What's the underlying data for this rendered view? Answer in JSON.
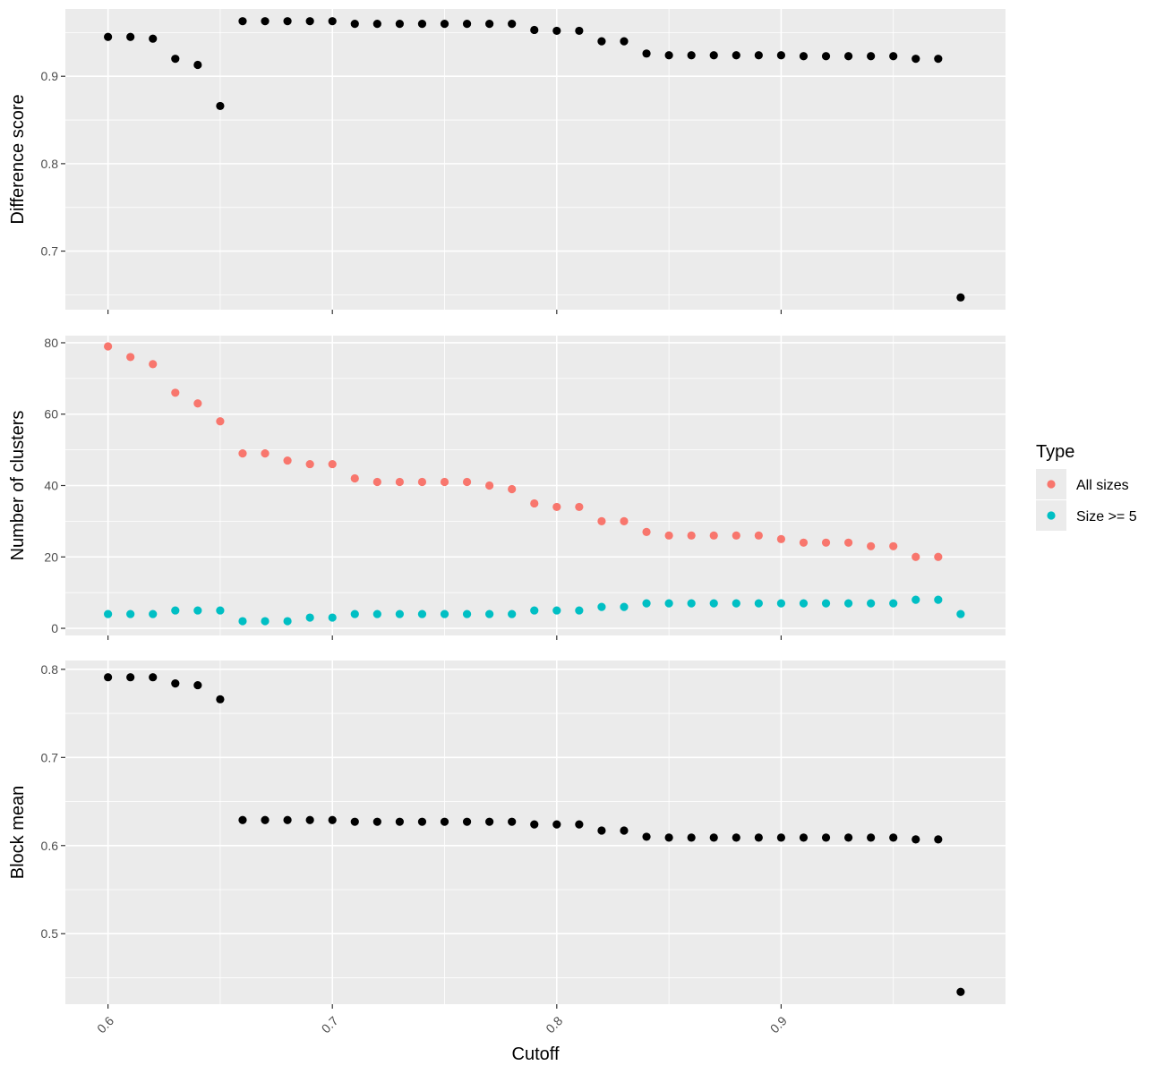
{
  "chart_data": {
    "type": "scatter",
    "xlabel": "Cutoff",
    "x": [
      0.6,
      0.61,
      0.62,
      0.63,
      0.64,
      0.65,
      0.66,
      0.67,
      0.68,
      0.69,
      0.7,
      0.71,
      0.72,
      0.73,
      0.74,
      0.75,
      0.76,
      0.77,
      0.78,
      0.79,
      0.8,
      0.81,
      0.82,
      0.83,
      0.84,
      0.85,
      0.86,
      0.87,
      0.88,
      0.89,
      0.9,
      0.91,
      0.92,
      0.93,
      0.94,
      0.95,
      0.96,
      0.97,
      0.98
    ],
    "xlim": [
      0.581,
      1.0
    ],
    "xticks": [
      0.6,
      0.7,
      0.8,
      0.9
    ],
    "x_tick_labels": [
      "0.6",
      "0.7",
      "0.8",
      "0.9"
    ],
    "grid": true,
    "panels": [
      {
        "ylabel": "Difference score",
        "ylim": [
          0.633,
          0.977
        ],
        "yticks": [
          0.7,
          0.8,
          0.9
        ],
        "y_tick_labels": [
          "0.7",
          "0.8",
          "0.9"
        ],
        "series": [
          {
            "color": "#000000",
            "values": [
              0.945,
              0.945,
              0.943,
              0.92,
              0.913,
              0.866,
              0.963,
              0.963,
              0.963,
              0.963,
              0.963,
              0.96,
              0.96,
              0.96,
              0.96,
              0.96,
              0.96,
              0.96,
              0.96,
              0.953,
              0.952,
              0.952,
              0.94,
              0.94,
              0.926,
              0.924,
              0.924,
              0.924,
              0.924,
              0.924,
              0.924,
              0.923,
              0.923,
              0.923,
              0.923,
              0.923,
              0.92,
              0.92,
              0.647
            ]
          }
        ]
      },
      {
        "ylabel": "Number of clusters",
        "ylim": [
          -2,
          82
        ],
        "yticks": [
          0,
          20,
          40,
          60,
          80
        ],
        "y_tick_labels": [
          "0",
          "20",
          "40",
          "60",
          "80"
        ],
        "series": [
          {
            "name": "All sizes",
            "color": "#F8766D",
            "values": [
              79,
              76,
              74,
              66,
              63,
              58,
              49,
              49,
              47,
              46,
              46,
              42,
              41,
              41,
              41,
              41,
              41,
              40,
              39,
              35,
              34,
              34,
              30,
              30,
              27,
              26,
              26,
              26,
              26,
              26,
              25,
              24,
              24,
              24,
              23,
              23,
              20,
              20,
              null
            ]
          },
          {
            "name": "Size >= 5",
            "color": "#00BFC4",
            "values": [
              4,
              4,
              4,
              5,
              5,
              5,
              2,
              2,
              2,
              3,
              3,
              4,
              4,
              4,
              4,
              4,
              4,
              4,
              4,
              5,
              5,
              5,
              6,
              6,
              7,
              7,
              7,
              7,
              7,
              7,
              7,
              7,
              7,
              7,
              7,
              7,
              8,
              8,
              4
            ]
          }
        ]
      },
      {
        "ylabel": "Block mean",
        "ylim": [
          0.42,
          0.81
        ],
        "yticks": [
          0.5,
          0.6,
          0.7,
          0.8
        ],
        "y_tick_labels": [
          "0.5",
          "0.6",
          "0.7",
          "0.8"
        ],
        "series": [
          {
            "color": "#000000",
            "values": [
              0.791,
              0.791,
              0.791,
              0.784,
              0.782,
              0.766,
              0.629,
              0.629,
              0.629,
              0.629,
              0.629,
              0.627,
              0.627,
              0.627,
              0.627,
              0.627,
              0.627,
              0.627,
              0.627,
              0.624,
              0.624,
              0.624,
              0.617,
              0.617,
              0.61,
              0.609,
              0.609,
              0.609,
              0.609,
              0.609,
              0.609,
              0.609,
              0.609,
              0.609,
              0.609,
              0.609,
              0.607,
              0.607,
              0.434
            ]
          }
        ]
      }
    ],
    "legend": {
      "title": "Type",
      "placement": "right",
      "entries": [
        {
          "label": "All sizes",
          "color": "#F8766D"
        },
        {
          "label": "Size >= 5",
          "color": "#00BFC4"
        }
      ]
    }
  }
}
